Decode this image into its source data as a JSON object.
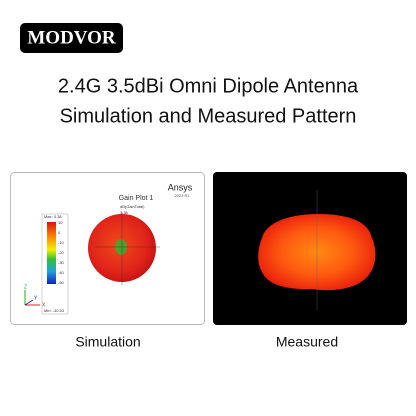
{
  "logo": "MODVOR",
  "header": {
    "title_line_1": "2.4G 3.5dBi Omni Dipole Antenna",
    "title_line_2": "Simulation and Measured Pattern"
  },
  "simulation": {
    "caption": "Simulation",
    "plot_title": "Gain Plot 1",
    "brand": "Ansys",
    "version": "2023 R1",
    "quantity": "dB(GainTotal)",
    "max_label": "Max: 3.38",
    "min_label": "Min: -40.53",
    "peak_value": "3.38",
    "scale_ticks": [
      "10",
      "0",
      "-10",
      "-20",
      "-30",
      "-40",
      "-50"
    ],
    "axes": [
      "Z",
      "Y",
      "X"
    ]
  },
  "measured": {
    "caption": "Measured"
  }
}
